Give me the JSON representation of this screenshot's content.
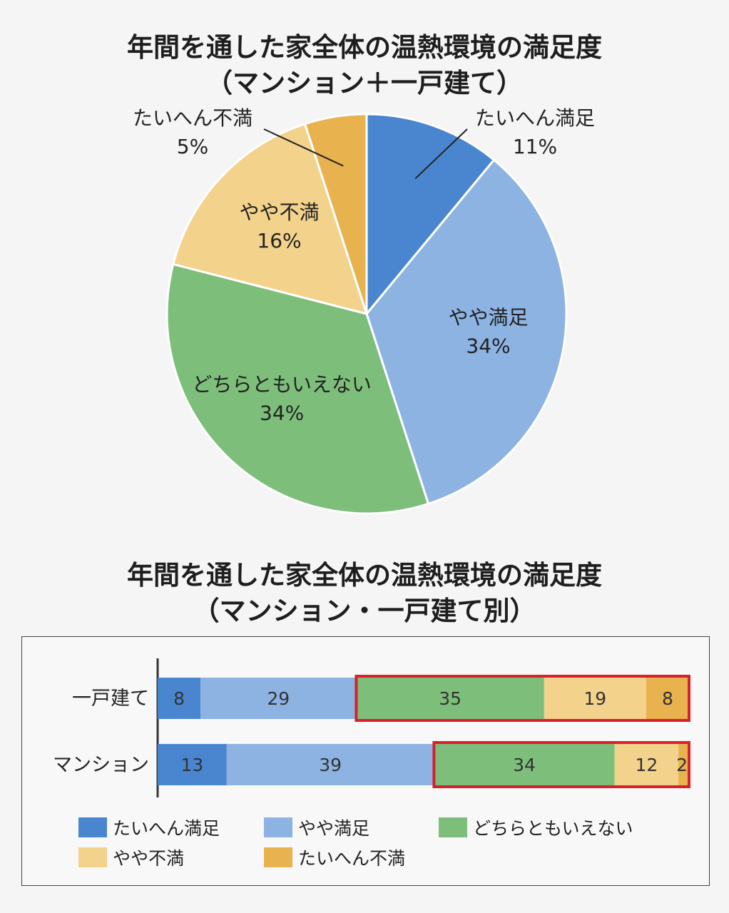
{
  "colors": {
    "たいへん満足": "#4a86cf",
    "やや満足": "#8db3e3",
    "どちらともいえない": "#7dbf7a",
    "やや不満": "#f3d28c",
    "たいへん不満": "#e8b24f",
    "highlight": "#d8212a"
  },
  "chart_data": [
    {
      "type": "pie",
      "title": "年間を通した家全体の温熱環境の満足度",
      "subtitle": "（マンション＋一戸建て）",
      "slices": [
        {
          "label": "たいへん満足",
          "value": 11,
          "value_label": "11%"
        },
        {
          "label": "やや満足",
          "value": 34,
          "value_label": "34%"
        },
        {
          "label": "どちらともいえない",
          "value": 34,
          "value_label": "34%"
        },
        {
          "label": "やや不満",
          "value": 16,
          "value_label": "16%"
        },
        {
          "label": "たいへん不満",
          "value": 5,
          "value_label": "5%"
        }
      ]
    },
    {
      "type": "bar",
      "orientation": "horizontal",
      "stacked": true,
      "title": "年間を通した家全体の温熱環境の満足度",
      "subtitle": "（マンション・一戸建て別）",
      "categories": [
        "一戸建て",
        "マンション"
      ],
      "series": [
        {
          "name": "たいへん満足",
          "values": [
            8,
            13
          ]
        },
        {
          "name": "やや満足",
          "values": [
            29,
            39
          ]
        },
        {
          "name": "どちらともいえない",
          "values": [
            35,
            34
          ]
        },
        {
          "name": "やや不満",
          "values": [
            19,
            12
          ]
        },
        {
          "name": "たいへん不満",
          "values": [
            8,
            2
          ]
        }
      ],
      "highlight_from_series": "どちらともいえない",
      "legend": [
        "たいへん満足",
        "やや満足",
        "どちらともいえない",
        "やや不満",
        "たいへん不満"
      ]
    }
  ]
}
